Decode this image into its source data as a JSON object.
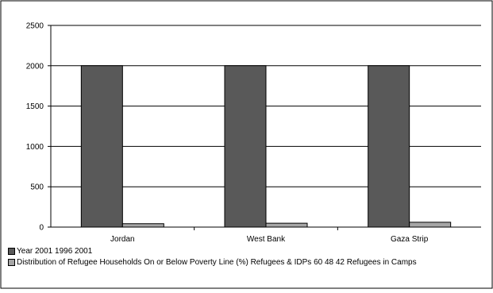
{
  "chart_data": {
    "type": "bar",
    "categories": [
      "Jordan",
      "West Bank",
      "Gaza Strip"
    ],
    "series": [
      {
        "name": "Year 2001 1996 2001",
        "values": [
          2001,
          2001,
          2001
        ],
        "color": "#595959"
      },
      {
        "name": "Distribution of Refugee Households On or Below Poverty Line (%) Refugees & IDPs 60 48 42 Refugees in Camps",
        "values": [
          42,
          48,
          60
        ],
        "color": "#a6a6a6"
      }
    ],
    "y_ticks": [
      "0",
      "500",
      "1000",
      "1500",
      "2000",
      "2500"
    ],
    "ylim": [
      0,
      2500
    ],
    "grid": true,
    "legend_position": "bottom-left"
  }
}
